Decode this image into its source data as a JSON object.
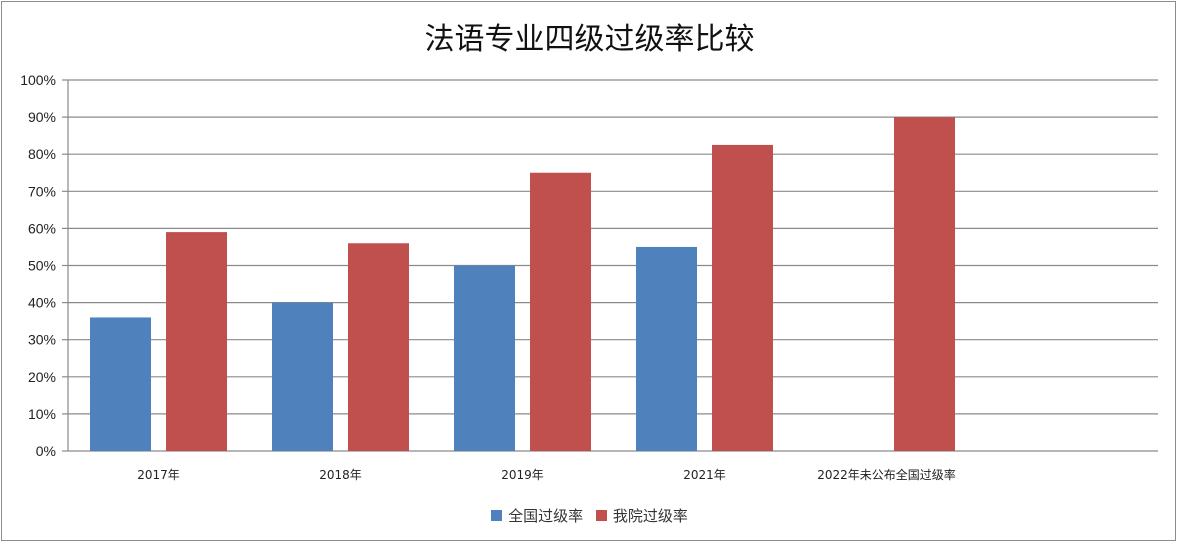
{
  "chart_data": {
    "type": "bar",
    "title": "法语专业四级过级率比较",
    "xlabel": "",
    "ylabel": "",
    "ylim": [
      0,
      100
    ],
    "yticks": [
      "0%",
      "10%",
      "20%",
      "30%",
      "40%",
      "50%",
      "60%",
      "70%",
      "80%",
      "90%",
      "100%"
    ],
    "categories": [
      "2017年",
      "2018年",
      "2019年",
      "2021年",
      "2022年未公布全国过级率"
    ],
    "series": [
      {
        "name": "全国过级率",
        "color": "#4f81bd",
        "values": [
          36,
          40,
          50,
          55,
          null
        ]
      },
      {
        "name": "我院过级率",
        "color": "#c0504d",
        "values": [
          59,
          56,
          75,
          82.5,
          90
        ]
      }
    ],
    "grid": true,
    "legend_position": "bottom"
  }
}
